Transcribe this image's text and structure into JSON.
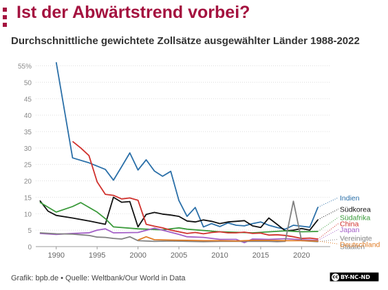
{
  "header": {
    "title": "Ist der Abwärtstrend vorbei?",
    "subtitle": "Durchschnittliche gewichtete Zollsätze ausgewählter Länder 1988-2022"
  },
  "footer": {
    "source": "Grafik: bpb.de • Quelle: Weltbank/Our World in Data",
    "license": "BY-NC-ND",
    "license_icon": "cc-icon"
  },
  "colors": {
    "brand": "#a4123f",
    "grid": "#dddddd",
    "axis": "#999999",
    "tick_text": "#888888"
  },
  "chart_data": {
    "type": "line",
    "x_ticks": [
      1990,
      1995,
      2000,
      2005,
      2010,
      2015,
      2020
    ],
    "y_ticks": [
      0,
      5,
      10,
      15,
      20,
      25,
      30,
      35,
      40,
      45,
      50,
      55
    ],
    "y_tick_labels": [
      "0",
      "5",
      "10",
      "15",
      "20",
      "25",
      "30",
      "35",
      "40",
      "45",
      "50",
      "55%"
    ],
    "xlim": [
      1987.5,
      2023.5
    ],
    "ylim": [
      0,
      57
    ],
    "grid": true,
    "legend": "right, labels at line ends",
    "series": [
      {
        "name": "Indien",
        "color": "#2a6fa8",
        "x": [
          1990,
          1992,
          1994,
          1996,
          1997,
          1998,
          1999,
          2000,
          2001,
          2002,
          2003,
          2004,
          2005,
          2006,
          2007,
          2008,
          2009,
          2010,
          2011,
          2012,
          2013,
          2014,
          2015,
          2016,
          2017,
          2018,
          2019,
          2020,
          2021,
          2022
        ],
        "y": [
          56.1,
          27.0,
          25.5,
          23.5,
          20.2,
          24.3,
          28.5,
          23.3,
          26.4,
          23.0,
          21.4,
          22.9,
          14.0,
          9.2,
          11.9,
          6.0,
          7.0,
          6.1,
          7.2,
          6.5,
          6.3,
          7.0,
          7.5,
          6.5,
          5.8,
          5.3,
          6.5,
          6.2,
          5.9,
          12.0
        ]
      },
      {
        "name": "Südkorea",
        "color": "#111111",
        "x": [
          1988,
          1989,
          1990,
          1992,
          1994,
          1996,
          1997,
          1998,
          1999,
          2000,
          2001,
          2002,
          2003,
          2004,
          2005,
          2006,
          2007,
          2008,
          2009,
          2010,
          2011,
          2012,
          2013,
          2014,
          2015,
          2016,
          2017,
          2018,
          2019,
          2020,
          2021,
          2022
        ],
        "y": [
          14.0,
          10.8,
          9.5,
          8.7,
          7.8,
          6.8,
          15.0,
          13.5,
          13.7,
          6.0,
          9.8,
          10.4,
          9.9,
          9.6,
          9.2,
          7.8,
          7.5,
          8.1,
          7.7,
          7.0,
          7.5,
          7.7,
          7.9,
          6.3,
          5.8,
          8.7,
          6.8,
          4.8,
          5.0,
          5.5,
          5.0,
          8.2
        ]
      },
      {
        "name": "Südafrika",
        "color": "#3a9a3a",
        "x": [
          1988,
          1990,
          1992,
          1993,
          1995,
          1996,
          1997,
          2000,
          2003,
          2004,
          2005,
          2006,
          2010,
          2014,
          2018,
          2020,
          2022
        ],
        "y": [
          13.5,
          10.5,
          12.2,
          13.4,
          10.5,
          8.5,
          6.0,
          5.4,
          5.1,
          5.4,
          5.7,
          5.3,
          4.5,
          4.2,
          4.8,
          4.5,
          4.6
        ]
      },
      {
        "name": "China",
        "color": "#d0312d",
        "x": [
          1992,
          1993,
          1994,
          1995,
          1996,
          1997,
          1998,
          1999,
          2000,
          2001,
          2002,
          2003,
          2004,
          2005,
          2006,
          2007,
          2008,
          2009,
          2010,
          2011,
          2012,
          2013,
          2014,
          2015,
          2016,
          2017,
          2018,
          2019,
          2020,
          2021,
          2022
        ],
        "y": [
          32.0,
          30.0,
          27.7,
          19.7,
          15.9,
          15.6,
          14.5,
          14.8,
          14.1,
          6.8,
          6.2,
          5.7,
          5.0,
          4.5,
          4.0,
          4.3,
          3.9,
          4.3,
          4.5,
          4.2,
          4.2,
          4.4,
          4.0,
          4.1,
          3.5,
          3.6,
          3.4,
          3.0,
          2.5,
          2.6,
          2.3
        ]
      },
      {
        "name": "Japan",
        "color": "#a35fc7",
        "x": [
          1988,
          1990,
          1992,
          1994,
          1995,
          1996,
          1997,
          2000,
          2002,
          2003,
          2005,
          2006,
          2008,
          2010,
          2012,
          2013,
          2014,
          2016,
          2018,
          2020,
          2022
        ],
        "y": [
          4.0,
          3.7,
          4.0,
          4.2,
          5.0,
          5.4,
          4.2,
          4.3,
          5.6,
          5.0,
          3.7,
          3.0,
          2.8,
          2.2,
          2.2,
          1.2,
          2.3,
          2.2,
          2.4,
          2.1,
          1.9
        ]
      },
      {
        "name": "Vereinigte Staaten",
        "color": "#808080",
        "x": [
          1988,
          1990,
          1992,
          1994,
          1995,
          1996,
          1997,
          1998,
          1999,
          2000,
          2002,
          2004,
          2006,
          2008,
          2010,
          2012,
          2014,
          2016,
          2017,
          2018,
          2019,
          2020,
          2022
        ],
        "y": [
          4.2,
          3.9,
          3.8,
          3.4,
          2.9,
          2.8,
          2.5,
          2.3,
          3.0,
          1.8,
          1.6,
          1.7,
          1.6,
          1.5,
          1.6,
          1.6,
          1.6,
          1.6,
          1.5,
          1.6,
          13.8,
          1.8,
          1.5
        ]
      },
      {
        "name": "Deutschland",
        "color": "#e07b24",
        "x": [
          2000,
          2001,
          2002,
          2004,
          2006,
          2008,
          2010,
          2012,
          2014,
          2016,
          2018,
          2020,
          2022
        ],
        "y": [
          2.0,
          3.0,
          2.1,
          2.0,
          1.9,
          1.8,
          1.8,
          1.7,
          1.9,
          1.9,
          1.8,
          1.8,
          1.7
        ]
      }
    ]
  },
  "legend_positions": {
    "Indien": 14.3,
    "Südkorea": 10.8,
    "Südafrika": 8.3,
    "China": 6.4,
    "Japan": 4.6,
    "Vereinigte Staaten": 1.6,
    "Deutschland": 0.15
  }
}
